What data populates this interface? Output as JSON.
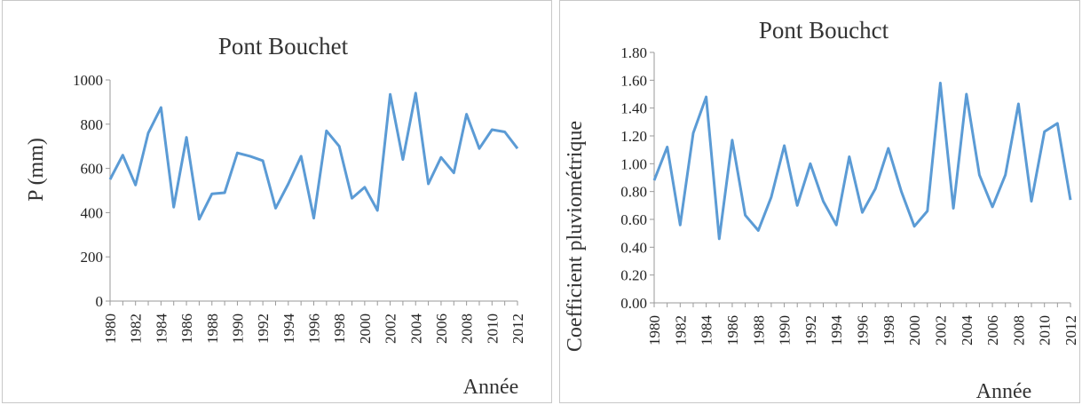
{
  "chart_data": [
    {
      "type": "line",
      "title": "Pont Bouchet",
      "xlabel": "Année",
      "ylabel": "P (mm)",
      "ylim": [
        0,
        1000
      ],
      "grid": false,
      "ytick_labels": [
        "0",
        "200",
        "400",
        "600",
        "800",
        "1000"
      ],
      "xtick_labels": [
        "1980",
        "1982",
        "1984",
        "1986",
        "1988",
        "1990",
        "1992",
        "1994",
        "1996",
        "1998",
        "2000",
        "2002",
        "2004",
        "2006",
        "2008",
        "2010",
        "2012"
      ],
      "x": [
        1980,
        1981,
        1982,
        1983,
        1984,
        1985,
        1986,
        1987,
        1988,
        1989,
        1990,
        1991,
        1992,
        1993,
        1994,
        1995,
        1996,
        1997,
        1998,
        1999,
        2000,
        2001,
        2002,
        2003,
        2004,
        2005,
        2006,
        2007,
        2008,
        2009,
        2010,
        2011,
        2012
      ],
      "series": [
        {
          "values": [
            550,
            660,
            525,
            760,
            875,
            425,
            740,
            370,
            485,
            490,
            670,
            655,
            635,
            420,
            530,
            655,
            375,
            770,
            700,
            465,
            515,
            410,
            935,
            640,
            940,
            530,
            650,
            580,
            845,
            690,
            775,
            765,
            690
          ]
        }
      ],
      "color": "#5b9bd5"
    },
    {
      "type": "line",
      "title": "Pont Bouchct",
      "xlabel": "Année",
      "ylabel": "Coefficient pluviométrique",
      "ylim": [
        0,
        1.8
      ],
      "grid": false,
      "ytick_labels": [
        "0.00",
        "0.20",
        "0.40",
        "0.60",
        "0.80",
        "1.00",
        "1.20",
        "1.40",
        "1.60",
        "1.80"
      ],
      "xtick_labels": [
        "1980",
        "1982",
        "1984",
        "1986",
        "1988",
        "1990",
        "1992",
        "1994",
        "1996",
        "1998",
        "2000",
        "2002",
        "2004",
        "2006",
        "2008",
        "2010",
        "2012"
      ],
      "x": [
        1980,
        1981,
        1982,
        1983,
        1984,
        1985,
        1986,
        1987,
        1988,
        1989,
        1990,
        1991,
        1992,
        1993,
        1994,
        1995,
        1996,
        1997,
        1998,
        1999,
        2000,
        2001,
        2002,
        2003,
        2004,
        2005,
        2006,
        2007,
        2008,
        2009,
        2010,
        2011,
        2012
      ],
      "series": [
        {
          "values": [
            0.88,
            1.12,
            0.56,
            1.22,
            1.48,
            0.46,
            1.17,
            0.63,
            0.52,
            0.76,
            1.13,
            0.7,
            1.0,
            0.73,
            0.56,
            1.05,
            0.65,
            0.82,
            1.11,
            0.8,
            0.55,
            0.66,
            1.58,
            0.68,
            1.5,
            0.92,
            0.69,
            0.92,
            1.43,
            0.73,
            1.23,
            1.29,
            0.74
          ]
        }
      ],
      "color": "#5b9bd5"
    }
  ]
}
